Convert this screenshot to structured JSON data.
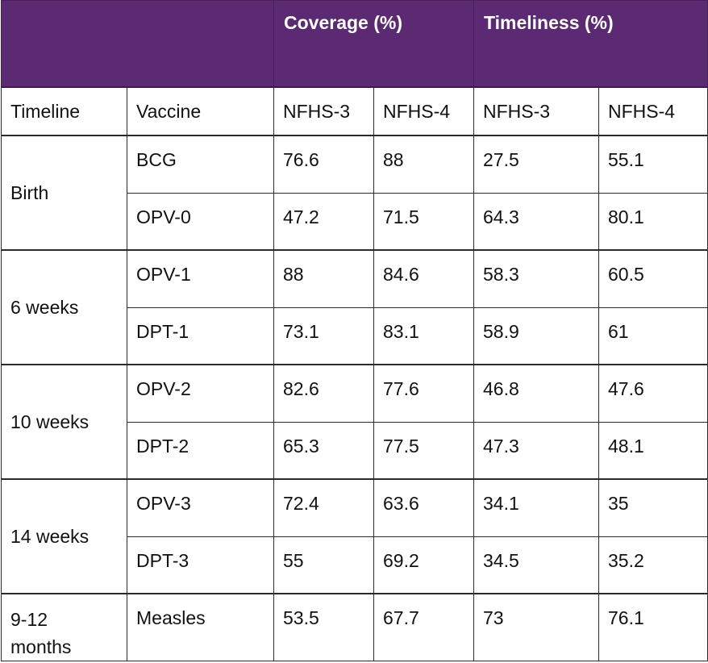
{
  "header": {
    "group_empty": "",
    "coverage": "Coverage (%)",
    "timeliness": "Timeliness (%)",
    "columns": [
      "Timeline",
      "Vaccine",
      "NFHS-3",
      "NFHS-4",
      "NFHS-3",
      "NFHS-4"
    ]
  },
  "colors": {
    "header_bg": "#5c2a73",
    "header_text": "#ffffff"
  },
  "groups": [
    {
      "timeline": "Birth",
      "rows": [
        {
          "vaccine": "BCG",
          "cov3": "76.6",
          "cov4": "88",
          "tim3": "27.5",
          "tim4": "55.1"
        },
        {
          "vaccine": "OPV-0",
          "cov3": "47.2",
          "cov4": "71.5",
          "tim3": "64.3",
          "tim4": "80.1"
        }
      ]
    },
    {
      "timeline": "6 weeks",
      "rows": [
        {
          "vaccine": "OPV-1",
          "cov3": "88",
          "cov4": "84.6",
          "tim3": "58.3",
          "tim4": "60.5"
        },
        {
          "vaccine": "DPT-1",
          "cov3": "73.1",
          "cov4": "83.1",
          "tim3": "58.9",
          "tim4": "61"
        }
      ]
    },
    {
      "timeline": "10 weeks",
      "rows": [
        {
          "vaccine": "OPV-2",
          "cov3": "82.6",
          "cov4": "77.6",
          "tim3": "46.8",
          "tim4": "47.6"
        },
        {
          "vaccine": "DPT-2",
          "cov3": "65.3",
          "cov4": "77.5",
          "tim3": "47.3",
          "tim4": "48.1"
        }
      ]
    },
    {
      "timeline": "14 weeks",
      "rows": [
        {
          "vaccine": "OPV-3",
          "cov3": "72.4",
          "cov4": "63.6",
          "tim3": "34.1",
          "tim4": "35"
        },
        {
          "vaccine": "DPT-3",
          "cov3": "55",
          "cov4": "69.2",
          "tim3": "34.5",
          "tim4": "35.2"
        }
      ]
    },
    {
      "timeline": "9-12\nmonths",
      "rows": [
        {
          "vaccine": "Measles",
          "cov3": "53.5",
          "cov4": "67.7",
          "tim3": "73",
          "tim4": "76.1"
        }
      ]
    }
  ]
}
